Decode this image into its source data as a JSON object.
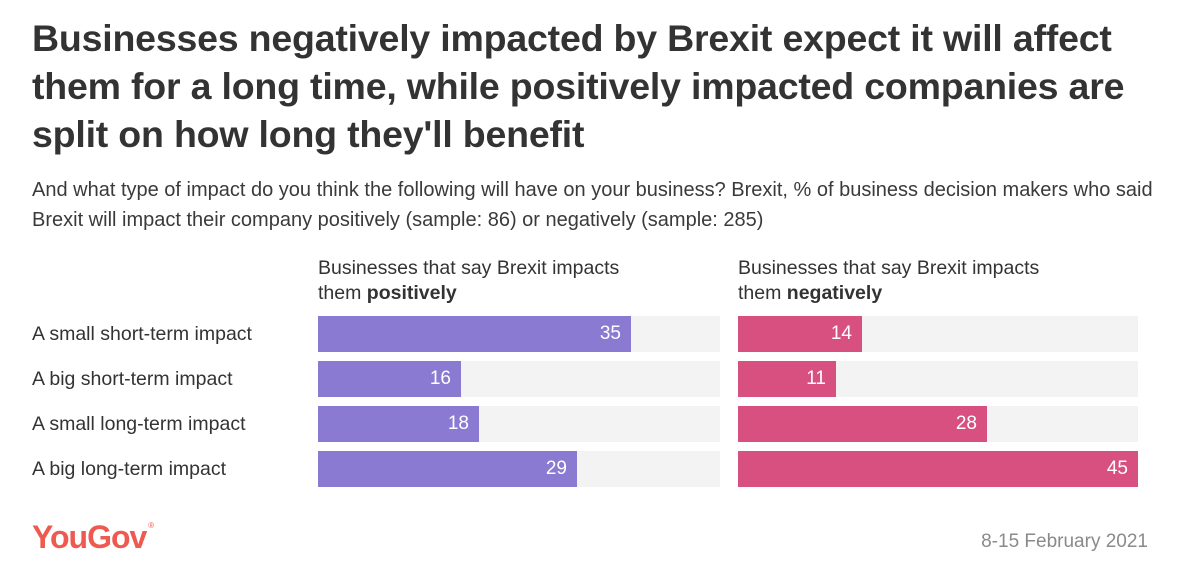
{
  "chart_data": {
    "type": "bar",
    "orientation": "horizontal",
    "title": "Businesses negatively impacted by Brexit expect it will affect them for a long time, while positively impacted companies are split on how long they'll benefit",
    "subtitle": "And what type of impact do you think the following will have on your business? Brexit, % of business decision makers who said Brexit will impact their company positively (sample: 86) or negatively (sample: 285)",
    "categories": [
      "A small short-term impact",
      "A big short-term impact",
      "A small long-term impact",
      "A big long-term impact"
    ],
    "xlim": [
      0,
      45
    ],
    "grid": false,
    "series": [
      {
        "name": "Businesses that say Brexit impacts them positively",
        "header_prefix": "Businesses that say Brexit impacts them ",
        "header_emphasis": "positively",
        "color": "#8a7ad1",
        "values": [
          35,
          16,
          18,
          29
        ]
      },
      {
        "name": "Businesses that say Brexit impacts them negatively",
        "header_prefix": "Businesses that say Brexit impacts them ",
        "header_emphasis": "negatively",
        "color": "#d8507f",
        "values": [
          14,
          11,
          28,
          45
        ]
      }
    ],
    "track_color": "#f3f3f3",
    "source": "YouGov",
    "date": "8-15 February 2021"
  },
  "branding": {
    "logo_text": "YouGov",
    "logo_mark": "®",
    "logo_color": "#ee5a50"
  }
}
